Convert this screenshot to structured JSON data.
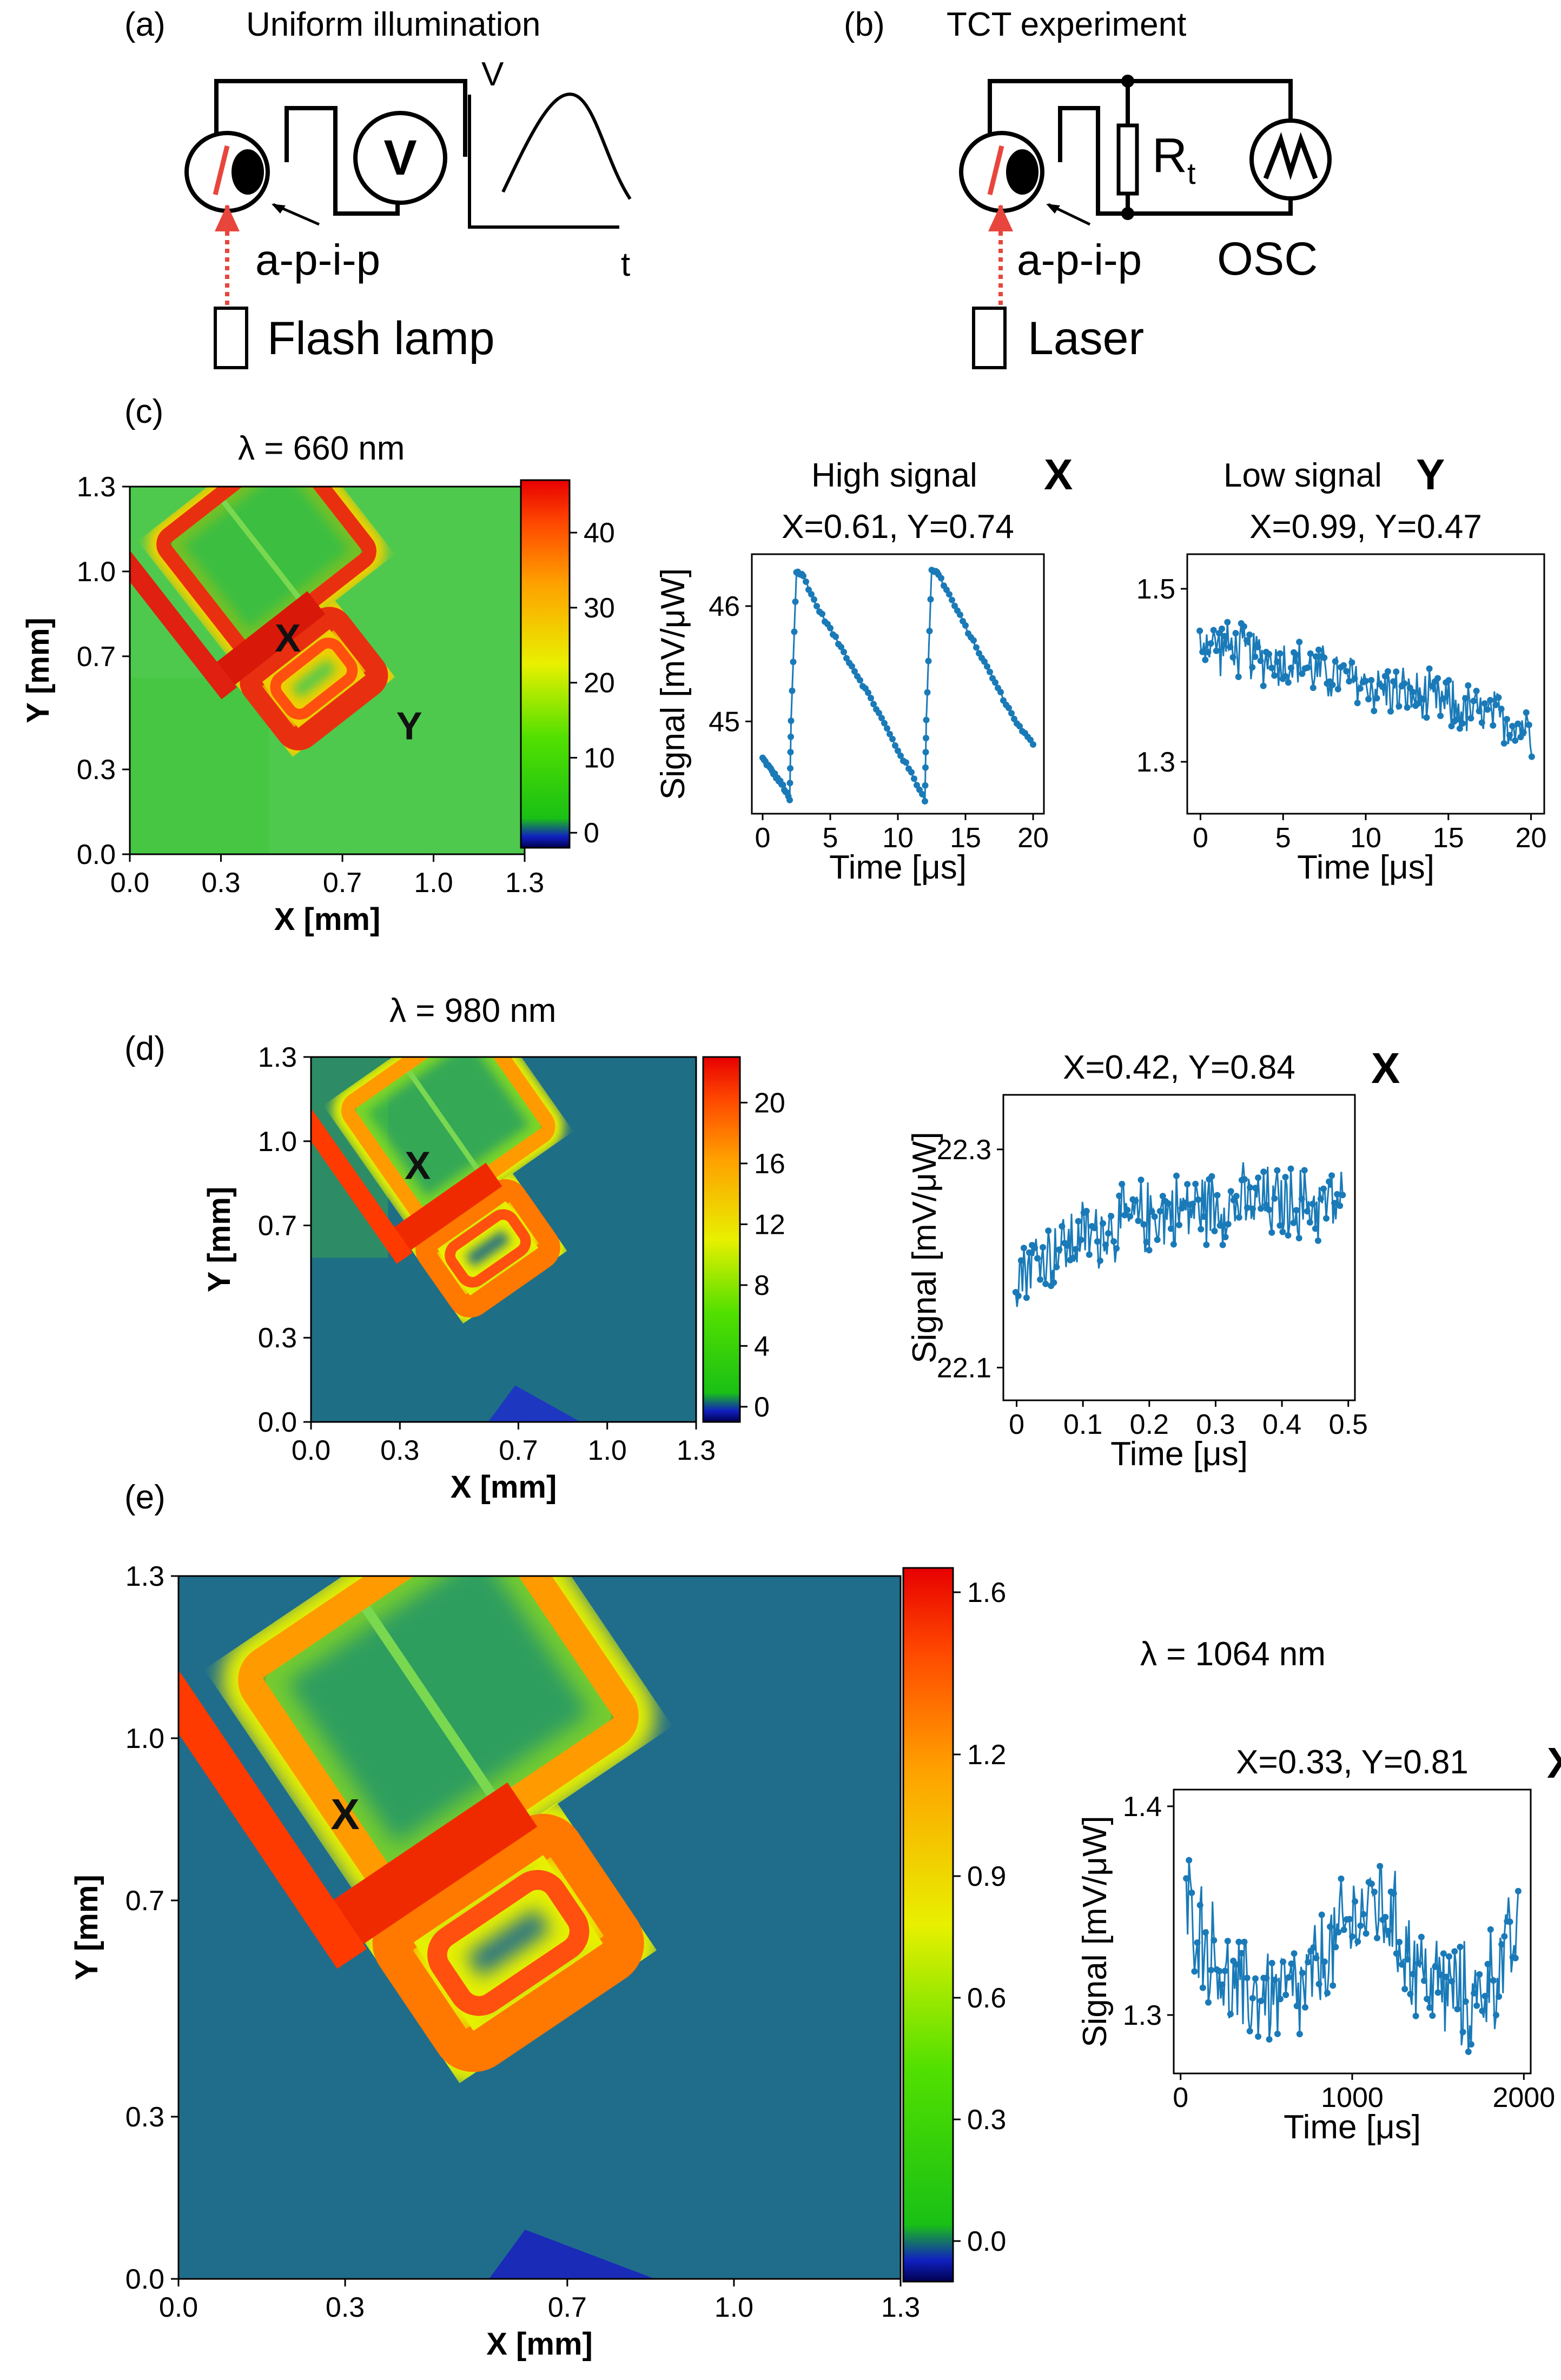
{
  "colors": {
    "trace": "#1a7ab8",
    "arrow": "#e8463c",
    "map_bg": "#1e6e86"
  },
  "panel_a": {
    "label": "(a)",
    "title": "Uniform illumination",
    "meter": "V",
    "device": "a-p-i-p",
    "source": "Flash lamp",
    "plot_v": "V",
    "plot_t": "t"
  },
  "panel_b": {
    "label": "(b)",
    "title": "TCT experiment",
    "resistor": "R",
    "resistor_sub": "t",
    "device": "a-p-i-p",
    "scope": "OSC",
    "source": "Laser"
  },
  "maps": [
    {
      "id": "c",
      "label": "(c)",
      "lambda": "λ = 660 nm",
      "ylabel": "Y [mm]",
      "xlabel": "X [mm]",
      "ticks": [
        "0.0",
        "0.3",
        "0.7",
        "1.0",
        "1.3"
      ],
      "cbar": [
        "0",
        "10",
        "20",
        "30",
        "40"
      ],
      "cbar_range": [
        -2,
        47
      ],
      "markers": [
        {
          "t": "X",
          "x": 0.52,
          "y": 0.77
        },
        {
          "t": "Y",
          "x": 0.92,
          "y": 0.46
        }
      ]
    },
    {
      "id": "d",
      "label": "(d)",
      "lambda": "λ = 980 nm",
      "ylabel": "Y [mm]",
      "xlabel": "X [mm]",
      "ticks": [
        "0.0",
        "0.3",
        "0.7",
        "1.0",
        "1.3"
      ],
      "cbar": [
        "0",
        "4",
        "8",
        "12",
        "16",
        "20"
      ],
      "cbar_range": [
        -1,
        23
      ],
      "markers": [
        {
          "t": "X",
          "x": 0.36,
          "y": 0.92
        }
      ]
    },
    {
      "id": "e",
      "label": "(e)",
      "lambda": "λ = 1064 nm",
      "ylabel": "Y [mm]",
      "xlabel": "X [mm]",
      "ticks": [
        "0.0",
        "0.3",
        "0.7",
        "1.0",
        "1.3"
      ],
      "cbar": [
        "0.0",
        "0.3",
        "0.6",
        "0.9",
        "1.2",
        "1.6"
      ],
      "cbar_range": [
        -0.1,
        1.66
      ],
      "markers": [
        {
          "t": "X",
          "x": 0.3,
          "y": 0.86
        }
      ]
    }
  ],
  "chart_data": [
    {
      "type": "line",
      "id": "c-high",
      "header": "High signal",
      "marker": "X",
      "title": "X=0.61, Y=0.74",
      "xlabel": "Time [μs]",
      "ylabel": "Signal [mV/μW]",
      "xlim": [
        -0.8,
        20.8
      ],
      "ylim": [
        44.2,
        46.45
      ],
      "xticks": [
        0,
        5,
        10,
        15,
        20
      ],
      "yticks": [
        45,
        46
      ],
      "shape": "sawtooth",
      "x": [
        0,
        0.5,
        1,
        1.5,
        2,
        2.1,
        2.5,
        3,
        4,
        5,
        6,
        7,
        8,
        9,
        10,
        11,
        12,
        12.1,
        12.5,
        13,
        14,
        15,
        16,
        17,
        18,
        19,
        20
      ],
      "y": [
        44.68,
        44.6,
        44.52,
        44.44,
        44.32,
        45.0,
        46.3,
        46.26,
        46.0,
        45.8,
        45.6,
        45.4,
        45.2,
        44.98,
        44.75,
        44.55,
        44.32,
        45.0,
        46.32,
        46.28,
        46.05,
        45.82,
        45.6,
        45.38,
        45.15,
        44.95,
        44.8
      ]
    },
    {
      "type": "line",
      "id": "c-low",
      "header": "Low signal",
      "marker": "Y",
      "title": "X=0.99, Y=0.47",
      "xlabel": "Time [μs]",
      "ylabel": "",
      "xlim": [
        -0.8,
        20.8
      ],
      "ylim": [
        1.24,
        1.54
      ],
      "xticks": [
        0,
        5,
        10,
        15,
        20
      ],
      "yticks": [
        1.3,
        1.5
      ],
      "shape": "noisy",
      "x": [
        0,
        20
      ],
      "y": [
        1.44,
        1.34
      ],
      "noise": 0.055
    },
    {
      "type": "line",
      "id": "d",
      "marker": "X",
      "title": "X=0.42, Y=0.84",
      "xlabel": "Time [μs]",
      "ylabel": "Signal [mV/μW]",
      "xlim": [
        -0.02,
        0.51
      ],
      "ylim": [
        22.07,
        22.35
      ],
      "xticks": [
        0,
        0.1,
        0.2,
        0.3,
        0.4,
        0.5
      ],
      "yticks": [
        22.1,
        22.3
      ],
      "shape": "noisy",
      "x": [
        0,
        0.1,
        0.2,
        0.3,
        0.4,
        0.5
      ],
      "y": [
        22.19,
        22.22,
        22.24,
        22.25,
        22.25,
        22.25
      ],
      "noise": 0.06
    },
    {
      "type": "line",
      "id": "e",
      "marker": "X",
      "title": "X=0.33, Y=0.81",
      "xlabel": "Time [μs]",
      "ylabel": "Signal [mV/μW]",
      "xlim": [
        -40,
        2040
      ],
      "ylim": [
        1.272,
        1.408
      ],
      "xticks": [
        0,
        1000,
        2000
      ],
      "yticks": [
        1.3,
        1.4
      ],
      "shape": "noisy",
      "x": [
        0,
        300,
        700,
        1000,
        1150,
        1400,
        1700,
        2000
      ],
      "y": [
        1.36,
        1.31,
        1.31,
        1.345,
        1.355,
        1.32,
        1.305,
        1.34
      ],
      "noise": 0.045
    }
  ]
}
